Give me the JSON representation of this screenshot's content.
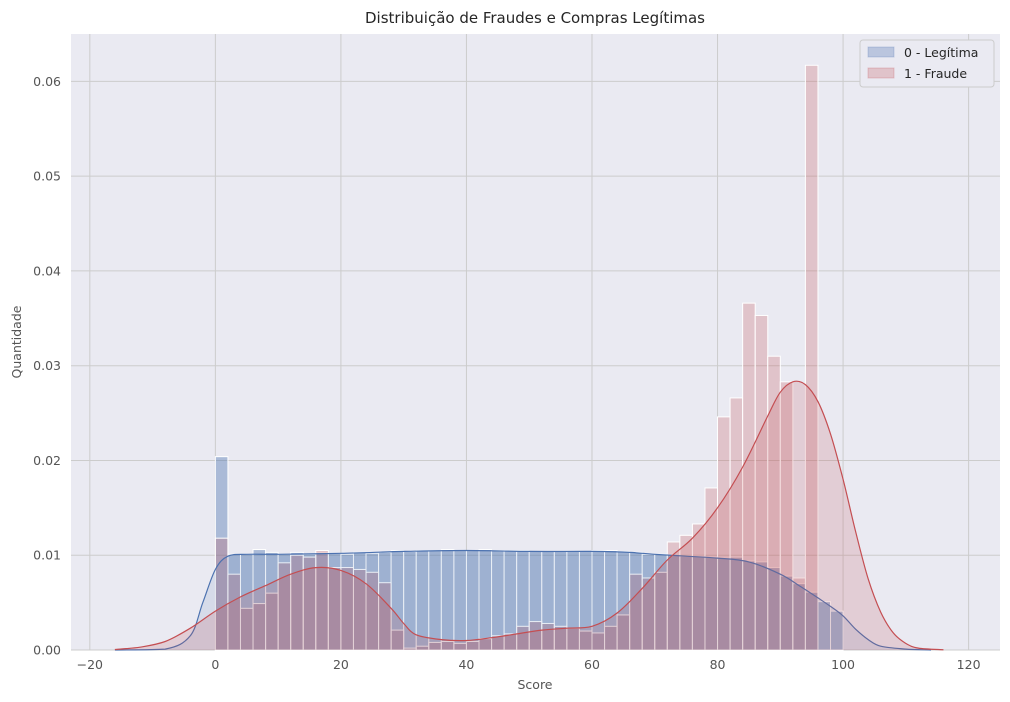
{
  "chart_data": {
    "type": "histogram",
    "title": "Distribuição de Fraudes e Compras Legítimas",
    "xlabel": "Score",
    "ylabel": "Quantidade",
    "xlim": [
      -23,
      125
    ],
    "ylim": [
      0,
      0.065
    ],
    "xticks": [
      -20,
      0,
      20,
      40,
      60,
      80,
      100,
      120
    ],
    "xtick_labels": [
      "−20",
      "0",
      "20",
      "40",
      "60",
      "80",
      "100",
      "120"
    ],
    "yticks": [
      0,
      0.01,
      0.02,
      0.03,
      0.04,
      0.05,
      0.06
    ],
    "ytick_labels": [
      "0.00",
      "0.01",
      "0.02",
      "0.03",
      "0.04",
      "0.05",
      "0.06"
    ],
    "grid": true,
    "legend_position": "top-right",
    "bins": [
      0,
      2,
      4,
      6,
      8,
      10,
      12,
      14,
      16,
      18,
      20,
      22,
      24,
      26,
      28,
      30,
      32,
      34,
      36,
      38,
      40,
      42,
      44,
      46,
      48,
      50,
      52,
      54,
      56,
      58,
      60,
      62,
      64,
      66,
      68,
      70,
      72,
      74,
      76,
      78,
      80,
      82,
      84,
      86,
      88,
      90,
      92,
      94,
      96,
      98,
      100
    ],
    "series": [
      {
        "name": "0 - Legítima",
        "color": "#4c72b0",
        "fill_alpha": 0.4,
        "density": [
          0.0204,
          0.0101,
          0.0101,
          0.0106,
          0.0103,
          0.0101,
          0.0103,
          0.0101,
          0.0103,
          0.0102,
          0.0101,
          0.0103,
          0.0102,
          0.0103,
          0.0105,
          0.0104,
          0.0105,
          0.0105,
          0.0106,
          0.0105,
          0.0105,
          0.0106,
          0.0105,
          0.0105,
          0.0105,
          0.0104,
          0.0104,
          0.0104,
          0.0104,
          0.0104,
          0.0105,
          0.0105,
          0.0104,
          0.0103,
          0.0101,
          0.0101,
          0.0101,
          0.0099,
          0.0099,
          0.0098,
          0.0097,
          0.0098,
          0.0094,
          0.0093,
          0.0087,
          0.0078,
          0.007,
          0.0061,
          0.0051,
          0.0041
        ],
        "kde": [
          [
            -16,
            0
          ],
          [
            -8,
            0.0001
          ],
          [
            -4,
            0.0015
          ],
          [
            -2,
            0.005
          ],
          [
            0,
            0.0085
          ],
          [
            2,
            0.0099
          ],
          [
            5,
            0.0101
          ],
          [
            10,
            0.0101
          ],
          [
            20,
            0.0102
          ],
          [
            30,
            0.0104
          ],
          [
            40,
            0.0105
          ],
          [
            50,
            0.0104
          ],
          [
            60,
            0.0104
          ],
          [
            66,
            0.0103
          ],
          [
            70,
            0.0101
          ],
          [
            75,
            0.0099
          ],
          [
            80,
            0.0097
          ],
          [
            85,
            0.0093
          ],
          [
            90,
            0.008
          ],
          [
            93,
            0.0068
          ],
          [
            96,
            0.0055
          ],
          [
            98,
            0.0046
          ],
          [
            100,
            0.0036
          ],
          [
            102,
            0.0022
          ],
          [
            104,
            0.0011
          ],
          [
            106,
            0.0004
          ],
          [
            110,
            0.0001
          ],
          [
            114,
            0
          ]
        ]
      },
      {
        "name": "1 - Fraude",
        "color": "#c44e52",
        "fill_alpha": 0.25,
        "density": [
          0.0118,
          0.008,
          0.0044,
          0.0049,
          0.006,
          0.0092,
          0.01,
          0.0098,
          0.0105,
          0.0087,
          0.0087,
          0.0085,
          0.0082,
          0.0071,
          0.0021,
          0.0002,
          0.0004,
          0.0008,
          0.0009,
          0.0007,
          0.0009,
          0.0012,
          0.0015,
          0.0017,
          0.0025,
          0.003,
          0.0028,
          0.0025,
          0.0023,
          0.002,
          0.0018,
          0.0025,
          0.0037,
          0.008,
          0.0076,
          0.0082,
          0.0114,
          0.0121,
          0.0133,
          0.0171,
          0.0246,
          0.0266,
          0.0366,
          0.0353,
          0.031,
          0.0283,
          0.0076,
          0.0617,
          0.0,
          0.0
        ],
        "kde": [
          [
            -16,
            5e-05
          ],
          [
            -12,
            0.0003
          ],
          [
            -8,
            0.0009
          ],
          [
            -4,
            0.0023
          ],
          [
            0,
            0.0041
          ],
          [
            4,
            0.0056
          ],
          [
            8,
            0.0068
          ],
          [
            12,
            0.008
          ],
          [
            16,
            0.0087
          ],
          [
            20,
            0.0084
          ],
          [
            24,
            0.007
          ],
          [
            28,
            0.0044
          ],
          [
            30,
            0.0028
          ],
          [
            32,
            0.0016
          ],
          [
            36,
            0.0011
          ],
          [
            40,
            0.001
          ],
          [
            44,
            0.0013
          ],
          [
            48,
            0.0017
          ],
          [
            52,
            0.0021
          ],
          [
            56,
            0.0023
          ],
          [
            60,
            0.0025
          ],
          [
            64,
            0.0039
          ],
          [
            68,
            0.0065
          ],
          [
            72,
            0.0095
          ],
          [
            76,
            0.0118
          ],
          [
            80,
            0.015
          ],
          [
            84,
            0.0193
          ],
          [
            88,
            0.0247
          ],
          [
            90,
            0.0272
          ],
          [
            92,
            0.0283
          ],
          [
            94,
            0.028
          ],
          [
            96,
            0.0262
          ],
          [
            98,
            0.0228
          ],
          [
            100,
            0.018
          ],
          [
            102,
            0.0125
          ],
          [
            104,
            0.0075
          ],
          [
            106,
            0.004
          ],
          [
            108,
            0.0018
          ],
          [
            110,
            0.0007
          ],
          [
            112,
            0.0002
          ],
          [
            116,
            2e-05
          ]
        ]
      }
    ],
    "legend": [
      {
        "label": "0 - Legítima",
        "color": "#4c72b0"
      },
      {
        "label": "1 - Fraude",
        "color": "#c44e52"
      }
    ]
  }
}
